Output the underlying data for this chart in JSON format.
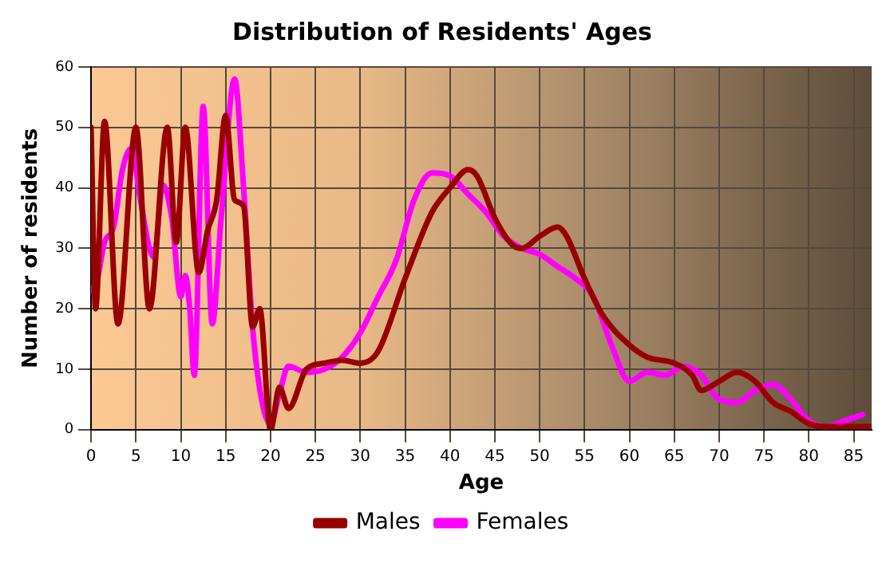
{
  "chart_data": {
    "type": "line",
    "title": "Distribution of Residents' Ages",
    "xlabel": "Age",
    "ylabel": "Number of residents",
    "xlim": [
      0,
      87
    ],
    "xticks": [
      0,
      5,
      10,
      15,
      20,
      25,
      30,
      35,
      40,
      45,
      50,
      55,
      60,
      65,
      70,
      75,
      80,
      85
    ],
    "ylim": [
      0,
      60
    ],
    "yticks": [
      0,
      10,
      20,
      30,
      40,
      50,
      60
    ],
    "grid": true,
    "legend": "bottom",
    "marker": "none",
    "line_style": "solid",
    "series": [
      {
        "name": "Males",
        "color": "#990000",
        "x": [
          0,
          0.5,
          1.5,
          3,
          5,
          6.5,
          8.5,
          9.5,
          10.5,
          12,
          13,
          14,
          15,
          16,
          17,
          18,
          18.8,
          20,
          21,
          22,
          24,
          26,
          28,
          30,
          32,
          35,
          38,
          40,
          42,
          43,
          45,
          47,
          48,
          50,
          52,
          53,
          55,
          57,
          60,
          62,
          65,
          67,
          68,
          70,
          72,
          74,
          76,
          78,
          80,
          82,
          85,
          87
        ],
        "values": [
          50,
          20,
          51,
          17.5,
          50,
          20,
          50,
          31,
          50,
          26,
          33,
          38,
          52,
          38,
          37,
          17,
          20,
          0,
          7,
          3.5,
          10,
          11,
          11.5,
          11,
          13,
          25,
          36,
          40,
          43,
          42,
          35,
          30.5,
          30,
          32,
          33.5,
          32,
          25,
          19,
          14,
          12,
          11,
          9,
          6.5,
          8,
          9.5,
          8,
          4.5,
          3,
          1,
          0.5,
          0.5,
          0.5
        ]
      },
      {
        "name": "Females",
        "color": "#ff00ff",
        "x": [
          0,
          0.7,
          1.5,
          2.5,
          3.5,
          4.5,
          5.5,
          6.5,
          7,
          8,
          9,
          10,
          10.5,
          11,
          11.5,
          12.5,
          13.5,
          14.5,
          16,
          17,
          18,
          19,
          20,
          21,
          22,
          24,
          26,
          28,
          30,
          32,
          34,
          36,
          38,
          40,
          42,
          44,
          46,
          48,
          50,
          52,
          54,
          56,
          58,
          60,
          62,
          64,
          66,
          68,
          70,
          72,
          74,
          76,
          78,
          80,
          82,
          84,
          86
        ],
        "values": [
          23,
          25,
          31,
          33.5,
          43,
          46.5,
          38,
          30,
          28.5,
          40.5,
          35,
          22,
          25.5,
          20,
          9,
          53.5,
          17.5,
          35,
          58,
          40,
          17,
          5,
          1,
          6,
          10.5,
          9.5,
          10,
          12,
          16,
          22,
          28,
          38,
          42.5,
          42,
          39,
          36,
          32,
          30,
          29,
          27,
          25,
          22,
          14,
          8,
          9.5,
          9,
          10.5,
          9,
          5,
          4.5,
          6.5,
          7.5,
          5,
          1.5,
          0.5,
          1.5,
          2.5
        ]
      }
    ]
  }
}
